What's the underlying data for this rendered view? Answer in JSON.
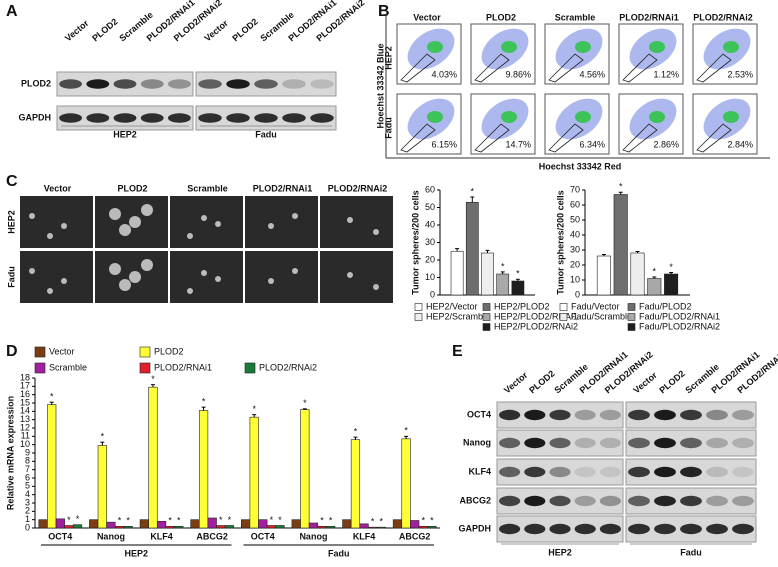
{
  "panels": {
    "a": "A",
    "b": "B",
    "c": "C",
    "d": "D",
    "e": "E"
  },
  "blot_a": {
    "lanes": [
      "Vector",
      "PLOD2",
      "Scramble",
      "PLOD2/RNAi1",
      "PLOD2/RNAi2"
    ],
    "rows": [
      "PLOD2",
      "GAPDH"
    ],
    "groups": [
      "HEP2",
      "Fadu"
    ]
  },
  "flow_b": {
    "columns": [
      "Vector",
      "PLOD2",
      "Scramble",
      "PLOD2/RNAi1",
      "PLOD2/RNAi2"
    ],
    "rows": [
      "HEP2",
      "Fadu"
    ],
    "y_label": "Hoechst 33342 Blue",
    "x_label": "Hoechst 33342 Red",
    "percentages": [
      [
        "4.03%",
        "9.86%",
        "4.56%",
        "1.12%",
        "2.53%"
      ],
      [
        "6.15%",
        "14.7%",
        "6.34%",
        "2.86%",
        "2.84%"
      ]
    ]
  },
  "spheres_c": {
    "columns": [
      "Vector",
      "PLOD2",
      "Scramble",
      "PLOD2/RNAi1",
      "PLOD2/RNAi2"
    ],
    "rows": [
      "HEP2",
      "Fadu"
    ]
  },
  "blot_e": {
    "lanes": [
      "Vector",
      "PLOD2",
      "Scramble",
      "PLOD2/RNAi1",
      "PLOD2/RNAi2"
    ],
    "rows": [
      "OCT4",
      "Nanog",
      "KLF4",
      "ABCG2",
      "GAPDH"
    ],
    "groups": [
      "HEP2",
      "Fadu"
    ]
  },
  "chart_data": [
    {
      "type": "bar",
      "y_label": "Tumor spheres/200 cells",
      "ylim": [
        0,
        60
      ],
      "yticks": [
        0,
        10,
        20,
        30,
        40,
        50,
        60
      ],
      "series": [
        {
          "name": "HEP2/Vector",
          "color": "#ffffff",
          "values": [
            25
          ],
          "errors": [
            1.5
          ]
        },
        {
          "name": "HEP2/PLOD2",
          "color": "#6e6e6e",
          "values": [
            53
          ],
          "errors": [
            3
          ],
          "annotation": "*"
        },
        {
          "name": "HEP2/Scramble",
          "color": "#eeeeee",
          "values": [
            24
          ],
          "errors": [
            1.5
          ]
        },
        {
          "name": "HEP2/PLOD2/RNAi1",
          "color": "#a8a8a8",
          "values": [
            12
          ],
          "errors": [
            1.2
          ],
          "annotation": "*"
        },
        {
          "name": "HEP2/PLOD2/RNAi2",
          "color": "#1e1e1e",
          "values": [
            8
          ],
          "errors": [
            1
          ],
          "annotation": "*"
        }
      ]
    },
    {
      "type": "bar",
      "y_label": "Tumor spheres/200 cells",
      "ylim": [
        0,
        70
      ],
      "yticks": [
        0,
        10,
        20,
        30,
        40,
        50,
        60,
        70
      ],
      "series": [
        {
          "name": "Fadu/Vector",
          "color": "#ffffff",
          "values": [
            26
          ],
          "errors": [
            1
          ]
        },
        {
          "name": "Fadu/PLOD2",
          "color": "#6e6e6e",
          "values": [
            67
          ],
          "errors": [
            1.5
          ],
          "annotation": "*"
        },
        {
          "name": "Fadu/Scramble",
          "color": "#eeeeee",
          "values": [
            28
          ],
          "errors": [
            1
          ]
        },
        {
          "name": "Fadu/PLOD2/RNAi1",
          "color": "#a8a8a8",
          "values": [
            11
          ],
          "errors": [
            1
          ],
          "annotation": "*"
        },
        {
          "name": "Fadu/PLOD2/RNAi2",
          "color": "#1e1e1e",
          "values": [
            14
          ],
          "errors": [
            1
          ],
          "annotation": "*"
        }
      ]
    },
    {
      "type": "bar",
      "y_label": "Relative mRNA expression",
      "ylim": [
        0,
        18
      ],
      "yticks": [
        0,
        1,
        2,
        3,
        4,
        5,
        6,
        7,
        8,
        9,
        10,
        11,
        12,
        13,
        14,
        15,
        16,
        17,
        18
      ],
      "categories": [
        "OCT4",
        "Nanog",
        "KLF4",
        "ABCG2",
        "OCT4",
        "Nanog",
        "KLF4",
        "ABCG2"
      ],
      "group_labels": [
        "HEP2",
        "Fadu"
      ],
      "series": [
        {
          "name": "Vector",
          "color": "#7a3e12",
          "values": [
            1,
            1,
            1,
            1,
            1,
            1,
            1,
            1
          ]
        },
        {
          "name": "PLOD2",
          "color": "#ffff33",
          "values": [
            14.8,
            9.9,
            16.9,
            14.1,
            13.3,
            14.2,
            10.6,
            10.7
          ],
          "errors": [
            0.3,
            0.4,
            0.3,
            0.4,
            0.3,
            0.1,
            0.3,
            0.3
          ],
          "annotation": "*"
        },
        {
          "name": "Scramble",
          "color": "#a020a0",
          "values": [
            1.1,
            0.7,
            0.8,
            1.2,
            1.0,
            0.6,
            0.5,
            0.9
          ]
        },
        {
          "name": "PLOD2/RNAi1",
          "color": "#e0202a",
          "values": [
            0.3,
            0.2,
            0.2,
            0.3,
            0.3,
            0.2,
            0.1,
            0.2
          ],
          "annotation": "*"
        },
        {
          "name": "PLOD2/RNAi2",
          "color": "#1a7a3a",
          "values": [
            0.4,
            0.2,
            0.2,
            0.3,
            0.3,
            0.2,
            0.1,
            0.2
          ],
          "annotation": "*"
        }
      ]
    }
  ]
}
